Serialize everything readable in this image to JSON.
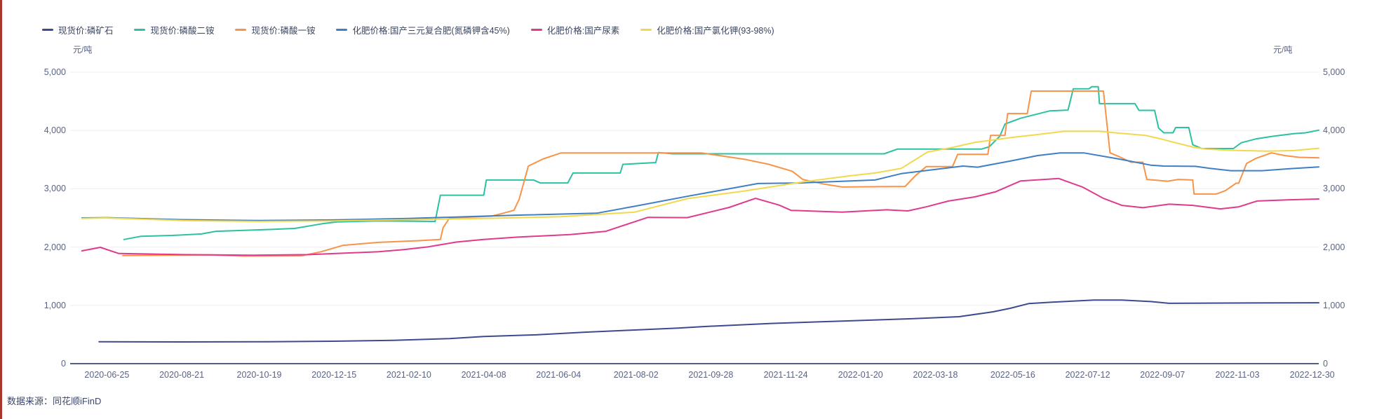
{
  "window": {
    "edge_accent_color": "#a8382e",
    "background": "#ffffff"
  },
  "legend": {
    "items": [
      {
        "label": "现货价:磷矿石",
        "color": "#3c4b8f",
        "series": "phosphate_rock"
      },
      {
        "label": "现货价:磷酸二铵",
        "color": "#2cc1a2",
        "series": "dap"
      },
      {
        "label": "现货价:磷酸一铵",
        "color": "#f79447",
        "series": "map"
      },
      {
        "label": "化肥价格:国产三元复合肥(氮磷钾含45%)",
        "color": "#3f7fc5",
        "series": "npk_compound"
      },
      {
        "label": "化肥价格:国产尿素",
        "color": "#e03a8c",
        "series": "urea"
      },
      {
        "label": "化肥价格:国产氯化钾(93-98%)",
        "color": "#f2d84b",
        "series": "potassium_chloride"
      }
    ]
  },
  "axes": {
    "unit_left": "元/吨",
    "unit_right": "元/吨",
    "grid_color": "#eeeef3",
    "axis_line_color": "#545e80",
    "y_ticks": [
      {
        "v": 0,
        "label": "0"
      },
      {
        "v": 1000,
        "label": "1,000"
      },
      {
        "v": 2000,
        "label": "2,000"
      },
      {
        "v": 3000,
        "label": "3,000"
      },
      {
        "v": 4000,
        "label": "4,000"
      },
      {
        "v": 5000,
        "label": "5,000"
      }
    ],
    "x_ticks": [
      {
        "d": 0,
        "label": "2020-06-25"
      },
      {
        "d": 57,
        "label": "2020-08-21"
      },
      {
        "d": 116,
        "label": "2020-10-19"
      },
      {
        "d": 173,
        "label": "2020-12-15"
      },
      {
        "d": 230,
        "label": "2021-02-10"
      },
      {
        "d": 287,
        "label": "2021-04-08"
      },
      {
        "d": 344,
        "label": "2021-06-04"
      },
      {
        "d": 403,
        "label": "2021-08-02"
      },
      {
        "d": 460,
        "label": "2021-09-28"
      },
      {
        "d": 517,
        "label": "2021-11-24"
      },
      {
        "d": 574,
        "label": "2022-01-20"
      },
      {
        "d": 631,
        "label": "2022-03-18"
      },
      {
        "d": 690,
        "label": "2022-05-16"
      },
      {
        "d": 747,
        "label": "2022-07-12"
      },
      {
        "d": 804,
        "label": "2022-09-07"
      },
      {
        "d": 861,
        "label": "2022-11-03"
      },
      {
        "d": 918,
        "label": "2022-12-30"
      }
    ]
  },
  "footer": {
    "source": "数据来源：同花顺iFinD"
  },
  "chart_data": {
    "type": "line",
    "title": "",
    "xlabel": "",
    "ylabel": "元/吨",
    "ylim": [
      0,
      5000
    ],
    "x_unit": "days since 2020-06-25 (weekly quotes, stepped)",
    "xlim": [
      -28,
      923
    ],
    "grid": true,
    "legend_position": "top-left",
    "series": [
      {
        "name": "现货价:磷矿石",
        "color": "#3c4b8f",
        "points": [
          [
            -6,
            375
          ],
          [
            58,
            372
          ],
          [
            115,
            375
          ],
          [
            172,
            385
          ],
          [
            218,
            400
          ],
          [
            261,
            430
          ],
          [
            287,
            465
          ],
          [
            328,
            495
          ],
          [
            364,
            540
          ],
          [
            399,
            575
          ],
          [
            435,
            610
          ],
          [
            453,
            635
          ],
          [
            506,
            690
          ],
          [
            560,
            730
          ],
          [
            613,
            770
          ],
          [
            649,
            805
          ],
          [
            675,
            890
          ],
          [
            688,
            950
          ],
          [
            702,
            1030
          ],
          [
            720,
            1055
          ],
          [
            752,
            1090
          ],
          [
            773,
            1090
          ],
          [
            795,
            1065
          ],
          [
            809,
            1035
          ],
          [
            853,
            1040
          ],
          [
            923,
            1045
          ]
        ]
      },
      {
        "name": "现货价:磷酸二铵",
        "color": "#2cc1a2",
        "points": [
          [
            13,
            2130
          ],
          [
            26,
            2185
          ],
          [
            50,
            2200
          ],
          [
            72,
            2225
          ],
          [
            83,
            2270
          ],
          [
            122,
            2300
          ],
          [
            143,
            2320
          ],
          [
            164,
            2400
          ],
          [
            175,
            2430
          ],
          [
            207,
            2450
          ],
          [
            250,
            2440
          ],
          [
            254,
            2890
          ],
          [
            287,
            2890
          ],
          [
            289,
            3150
          ],
          [
            325,
            3150
          ],
          [
            330,
            3100
          ],
          [
            351,
            3100
          ],
          [
            355,
            3270
          ],
          [
            391,
            3270
          ],
          [
            393,
            3420
          ],
          [
            418,
            3450
          ],
          [
            420,
            3620
          ],
          [
            431,
            3600
          ],
          [
            592,
            3600
          ],
          [
            602,
            3680
          ],
          [
            666,
            3680
          ],
          [
            672,
            3720
          ],
          [
            680,
            3900
          ],
          [
            684,
            4110
          ],
          [
            696,
            4210
          ],
          [
            718,
            4335
          ],
          [
            732,
            4350
          ],
          [
            736,
            4715
          ],
          [
            748,
            4715
          ],
          [
            750,
            4750
          ],
          [
            755,
            4750
          ],
          [
            756,
            4460
          ],
          [
            783,
            4460
          ],
          [
            786,
            4345
          ],
          [
            798,
            4345
          ],
          [
            801,
            4040
          ],
          [
            805,
            3960
          ],
          [
            812,
            3960
          ],
          [
            814,
            4050
          ],
          [
            824,
            4050
          ],
          [
            827,
            3755
          ],
          [
            834,
            3690
          ],
          [
            858,
            3690
          ],
          [
            864,
            3790
          ],
          [
            875,
            3855
          ],
          [
            888,
            3900
          ],
          [
            904,
            3945
          ],
          [
            913,
            3960
          ],
          [
            923,
            4005
          ]
        ]
      },
      {
        "name": "现货价:磷酸一铵",
        "color": "#f79447",
        "points": [
          [
            12,
            1855
          ],
          [
            79,
            1865
          ],
          [
            103,
            1845
          ],
          [
            148,
            1850
          ],
          [
            163,
            1920
          ],
          [
            180,
            2030
          ],
          [
            207,
            2080
          ],
          [
            239,
            2110
          ],
          [
            254,
            2130
          ],
          [
            256,
            2330
          ],
          [
            261,
            2500
          ],
          [
            293,
            2530
          ],
          [
            300,
            2570
          ],
          [
            310,
            2630
          ],
          [
            314,
            2820
          ],
          [
            321,
            3390
          ],
          [
            332,
            3510
          ],
          [
            346,
            3615
          ],
          [
            453,
            3615
          ],
          [
            487,
            3500
          ],
          [
            504,
            3420
          ],
          [
            522,
            3300
          ],
          [
            530,
            3160
          ],
          [
            546,
            3080
          ],
          [
            560,
            3030
          ],
          [
            608,
            3040
          ],
          [
            616,
            3230
          ],
          [
            624,
            3380
          ],
          [
            644,
            3380
          ],
          [
            648,
            3590
          ],
          [
            671,
            3590
          ],
          [
            673,
            3915
          ],
          [
            684,
            3915
          ],
          [
            686,
            4290
          ],
          [
            701,
            4290
          ],
          [
            704,
            4675
          ],
          [
            759,
            4675
          ],
          [
            764,
            3615
          ],
          [
            771,
            3550
          ],
          [
            780,
            3455
          ],
          [
            789,
            3455
          ],
          [
            792,
            3160
          ],
          [
            808,
            3130
          ],
          [
            816,
            3160
          ],
          [
            827,
            3150
          ],
          [
            828,
            2910
          ],
          [
            845,
            2910
          ],
          [
            852,
            2970
          ],
          [
            860,
            3095
          ],
          [
            862,
            3095
          ],
          [
            868,
            3435
          ],
          [
            875,
            3520
          ],
          [
            887,
            3615
          ],
          [
            897,
            3570
          ],
          [
            908,
            3540
          ],
          [
            923,
            3530
          ]
        ]
      },
      {
        "name": "化肥价格:国产三元复合肥(氮磷钾含45%)",
        "color": "#3f7fc5",
        "points": [
          [
            -19,
            2500
          ],
          [
            0,
            2505
          ],
          [
            58,
            2470
          ],
          [
            115,
            2455
          ],
          [
            172,
            2465
          ],
          [
            230,
            2490
          ],
          [
            287,
            2530
          ],
          [
            319,
            2550
          ],
          [
            373,
            2580
          ],
          [
            402,
            2700
          ],
          [
            442,
            2870
          ],
          [
            496,
            3090
          ],
          [
            528,
            3100
          ],
          [
            585,
            3150
          ],
          [
            605,
            3260
          ],
          [
            652,
            3390
          ],
          [
            663,
            3370
          ],
          [
            689,
            3480
          ],
          [
            709,
            3570
          ],
          [
            726,
            3615
          ],
          [
            744,
            3615
          ],
          [
            771,
            3510
          ],
          [
            795,
            3405
          ],
          [
            805,
            3390
          ],
          [
            829,
            3385
          ],
          [
            840,
            3350
          ],
          [
            856,
            3310
          ],
          [
            880,
            3310
          ],
          [
            901,
            3345
          ],
          [
            923,
            3375
          ]
        ]
      },
      {
        "name": "化肥价格:国产尿素",
        "color": "#e03a8c",
        "points": [
          [
            -19,
            1935
          ],
          [
            -5,
            1995
          ],
          [
            9,
            1890
          ],
          [
            58,
            1870
          ],
          [
            111,
            1860
          ],
          [
            154,
            1870
          ],
          [
            186,
            1900
          ],
          [
            207,
            1920
          ],
          [
            226,
            1955
          ],
          [
            245,
            2005
          ],
          [
            266,
            2085
          ],
          [
            287,
            2130
          ],
          [
            312,
            2170
          ],
          [
            353,
            2215
          ],
          [
            380,
            2270
          ],
          [
            412,
            2510
          ],
          [
            442,
            2505
          ],
          [
            474,
            2680
          ],
          [
            494,
            2835
          ],
          [
            512,
            2720
          ],
          [
            521,
            2630
          ],
          [
            560,
            2600
          ],
          [
            594,
            2640
          ],
          [
            610,
            2620
          ],
          [
            624,
            2690
          ],
          [
            641,
            2790
          ],
          [
            661,
            2860
          ],
          [
            677,
            2950
          ],
          [
            696,
            3135
          ],
          [
            725,
            3175
          ],
          [
            743,
            3030
          ],
          [
            759,
            2835
          ],
          [
            773,
            2715
          ],
          [
            789,
            2675
          ],
          [
            809,
            2735
          ],
          [
            827,
            2715
          ],
          [
            848,
            2655
          ],
          [
            862,
            2690
          ],
          [
            876,
            2790
          ],
          [
            899,
            2810
          ],
          [
            923,
            2825
          ]
        ]
      },
      {
        "name": "化肥价格:国产氯化钾(93-98%)",
        "color": "#f2d84b",
        "points": [
          [
            -19,
            2490
          ],
          [
            -1,
            2500
          ],
          [
            58,
            2455
          ],
          [
            115,
            2440
          ],
          [
            172,
            2450
          ],
          [
            230,
            2470
          ],
          [
            287,
            2490
          ],
          [
            346,
            2520
          ],
          [
            402,
            2600
          ],
          [
            442,
            2830
          ],
          [
            485,
            2960
          ],
          [
            528,
            3110
          ],
          [
            565,
            3220
          ],
          [
            585,
            3270
          ],
          [
            605,
            3350
          ],
          [
            625,
            3630
          ],
          [
            642,
            3700
          ],
          [
            661,
            3795
          ],
          [
            689,
            3880
          ],
          [
            709,
            3930
          ],
          [
            729,
            3985
          ],
          [
            756,
            3985
          ],
          [
            773,
            3950
          ],
          [
            791,
            3915
          ],
          [
            803,
            3855
          ],
          [
            812,
            3800
          ],
          [
            827,
            3715
          ],
          [
            837,
            3680
          ],
          [
            856,
            3660
          ],
          [
            883,
            3645
          ],
          [
            904,
            3655
          ],
          [
            923,
            3695
          ]
        ]
      }
    ]
  }
}
